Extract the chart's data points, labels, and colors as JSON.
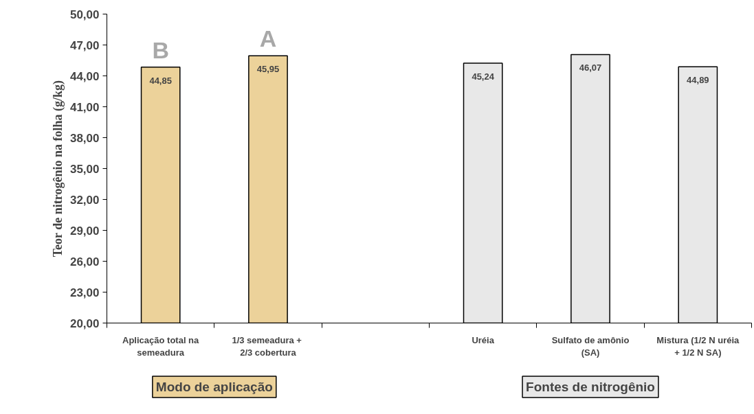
{
  "chart_data": {
    "type": "bar",
    "ylabel": "Teor de nitrogênio na folha (g/kg)",
    "categories": [
      "Aplicação total na\nsemeadura",
      "1/3 semeadura  +\n2/3 cobertura",
      null,
      "Uréia",
      "Sulfato de amônio\n(SA)",
      "Mistura (1/2 N uréia\n+ 1/2 N SA)"
    ],
    "values": [
      44.85,
      45.95,
      null,
      45.24,
      46.07,
      44.89
    ],
    "colors": [
      "#ecd29a",
      "#ecd29a",
      null,
      "#e8e8e8",
      "#e8e8e8",
      "#e8e8e8"
    ],
    "value_labels": [
      "44,85",
      "45,95",
      null,
      "45,24",
      "46,07",
      "44,89"
    ],
    "ylim": [
      20,
      50
    ],
    "yticks": [
      {
        "value": 20,
        "label": "20,00"
      },
      {
        "value": 23,
        "label": "23,00"
      },
      {
        "value": 26,
        "label": "26,00"
      },
      {
        "value": 29,
        "label": "29,00"
      },
      {
        "value": 32,
        "label": "32,00"
      },
      {
        "value": 35,
        "label": "35,00"
      },
      {
        "value": 38,
        "label": "38,00"
      },
      {
        "value": 41,
        "label": "41,00"
      },
      {
        "value": 44,
        "label": "44,00"
      },
      {
        "value": 47,
        "label": "47,00"
      },
      {
        "value": 50,
        "label": "50,00"
      }
    ],
    "annotations": [
      "B",
      "A",
      "Modo de aplicação",
      "Fontes de nitrogênio"
    ],
    "grid": false
  }
}
